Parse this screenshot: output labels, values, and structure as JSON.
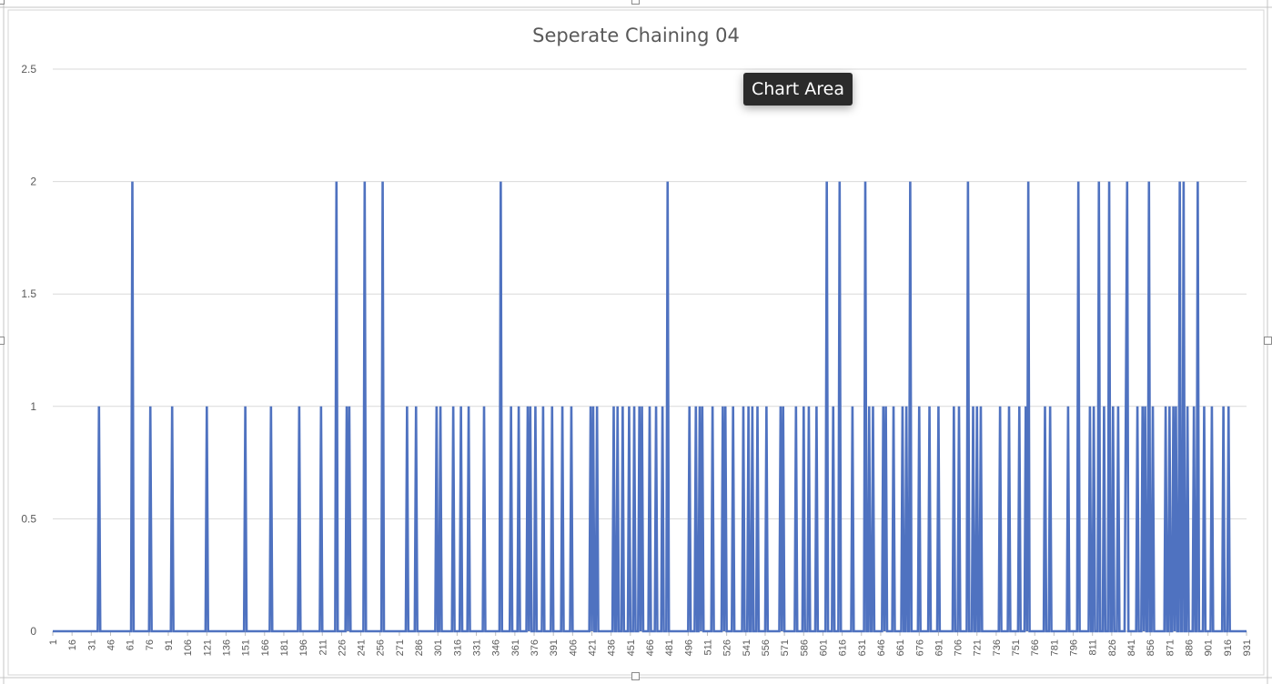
{
  "tooltip": {
    "text": "Chart Area"
  },
  "chart_data": {
    "type": "line",
    "title": "Seperate Chaining 04",
    "xlabel": "",
    "ylabel": "",
    "ylim": [
      0,
      2.5
    ],
    "y_ticks": [
      "0",
      "0.5",
      "1",
      "1.5",
      "2",
      "2.5"
    ],
    "x_ticks": [
      "1",
      "16",
      "31",
      "46",
      "61",
      "76",
      "91",
      "106",
      "121",
      "136",
      "151",
      "166",
      "181",
      "196",
      "211",
      "226",
      "241",
      "256",
      "271",
      "286",
      "301",
      "316",
      "331",
      "346",
      "361",
      "376",
      "391",
      "406",
      "421",
      "436",
      "451",
      "466",
      "481",
      "496",
      "511",
      "526",
      "541",
      "556",
      "571",
      "586",
      "601",
      "616",
      "631",
      "646",
      "661",
      "676",
      "691",
      "706",
      "721",
      "736",
      "751",
      "766",
      "781",
      "796",
      "811",
      "826",
      "841",
      "856",
      "871",
      "886",
      "901",
      "916",
      "931"
    ],
    "x_range": [
      1,
      931
    ],
    "grid": "horizontal",
    "legend": "none",
    "series_color": "#4f72c0",
    "point_count": 931,
    "peaks": [
      {
        "x": 37,
        "y": 1
      },
      {
        "x": 63,
        "y": 2
      },
      {
        "x": 77,
        "y": 1
      },
      {
        "x": 94,
        "y": 1
      },
      {
        "x": 121,
        "y": 1
      },
      {
        "x": 151,
        "y": 1
      },
      {
        "x": 171,
        "y": 1
      },
      {
        "x": 193,
        "y": 1
      },
      {
        "x": 210,
        "y": 1
      },
      {
        "x": 222,
        "y": 2
      },
      {
        "x": 230,
        "y": 1
      },
      {
        "x": 232,
        "y": 1
      },
      {
        "x": 244,
        "y": 2
      },
      {
        "x": 258,
        "y": 2
      },
      {
        "x": 277,
        "y": 1
      },
      {
        "x": 284,
        "y": 1
      },
      {
        "x": 300,
        "y": 1
      },
      {
        "x": 303,
        "y": 1
      },
      {
        "x": 313,
        "y": 1
      },
      {
        "x": 319,
        "y": 1
      },
      {
        "x": 325,
        "y": 1
      },
      {
        "x": 337,
        "y": 1
      },
      {
        "x": 350,
        "y": 2
      },
      {
        "x": 358,
        "y": 1
      },
      {
        "x": 364,
        "y": 1
      },
      {
        "x": 371,
        "y": 1
      },
      {
        "x": 373,
        "y": 1
      },
      {
        "x": 377,
        "y": 1
      },
      {
        "x": 383,
        "y": 1
      },
      {
        "x": 390,
        "y": 1
      },
      {
        "x": 398,
        "y": 1
      },
      {
        "x": 405,
        "y": 1
      },
      {
        "x": 420,
        "y": 1
      },
      {
        "x": 422,
        "y": 1
      },
      {
        "x": 425,
        "y": 1
      },
      {
        "x": 438,
        "y": 1
      },
      {
        "x": 441,
        "y": 1
      },
      {
        "x": 445,
        "y": 1
      },
      {
        "x": 450,
        "y": 1
      },
      {
        "x": 454,
        "y": 1
      },
      {
        "x": 458,
        "y": 1
      },
      {
        "x": 460,
        "y": 1
      },
      {
        "x": 466,
        "y": 1
      },
      {
        "x": 471,
        "y": 1
      },
      {
        "x": 476,
        "y": 1
      },
      {
        "x": 480,
        "y": 2
      },
      {
        "x": 497,
        "y": 1
      },
      {
        "x": 502,
        "y": 1
      },
      {
        "x": 505,
        "y": 1
      },
      {
        "x": 507,
        "y": 1
      },
      {
        "x": 515,
        "y": 1
      },
      {
        "x": 523,
        "y": 1
      },
      {
        "x": 525,
        "y": 1
      },
      {
        "x": 531,
        "y": 1
      },
      {
        "x": 539,
        "y": 1
      },
      {
        "x": 543,
        "y": 1
      },
      {
        "x": 546,
        "y": 1
      },
      {
        "x": 550,
        "y": 1
      },
      {
        "x": 557,
        "y": 1
      },
      {
        "x": 568,
        "y": 1
      },
      {
        "x": 570,
        "y": 1
      },
      {
        "x": 580,
        "y": 1
      },
      {
        "x": 586,
        "y": 1
      },
      {
        "x": 590,
        "y": 1
      },
      {
        "x": 596,
        "y": 1
      },
      {
        "x": 604,
        "y": 2
      },
      {
        "x": 609,
        "y": 1
      },
      {
        "x": 614,
        "y": 2
      },
      {
        "x": 624,
        "y": 1
      },
      {
        "x": 634,
        "y": 2
      },
      {
        "x": 637,
        "y": 1
      },
      {
        "x": 640,
        "y": 1
      },
      {
        "x": 648,
        "y": 1
      },
      {
        "x": 650,
        "y": 1
      },
      {
        "x": 656,
        "y": 1
      },
      {
        "x": 663,
        "y": 1
      },
      {
        "x": 666,
        "y": 1
      },
      {
        "x": 669,
        "y": 2
      },
      {
        "x": 676,
        "y": 1
      },
      {
        "x": 684,
        "y": 1
      },
      {
        "x": 691,
        "y": 1
      },
      {
        "x": 703,
        "y": 1
      },
      {
        "x": 707,
        "y": 1
      },
      {
        "x": 714,
        "y": 2
      },
      {
        "x": 718,
        "y": 1
      },
      {
        "x": 721,
        "y": 1
      },
      {
        "x": 724,
        "y": 1
      },
      {
        "x": 739,
        "y": 1
      },
      {
        "x": 746,
        "y": 1
      },
      {
        "x": 754,
        "y": 1
      },
      {
        "x": 759,
        "y": 1
      },
      {
        "x": 761,
        "y": 2
      },
      {
        "x": 774,
        "y": 1
      },
      {
        "x": 778,
        "y": 1
      },
      {
        "x": 792,
        "y": 1
      },
      {
        "x": 800,
        "y": 2
      },
      {
        "x": 809,
        "y": 1
      },
      {
        "x": 812,
        "y": 1
      },
      {
        "x": 816,
        "y": 2
      },
      {
        "x": 820,
        "y": 1
      },
      {
        "x": 824,
        "y": 2
      },
      {
        "x": 827,
        "y": 1
      },
      {
        "x": 831,
        "y": 1
      },
      {
        "x": 837,
        "y": 1
      },
      {
        "x": 838,
        "y": 2
      },
      {
        "x": 846,
        "y": 1
      },
      {
        "x": 850,
        "y": 1
      },
      {
        "x": 852,
        "y": 1
      },
      {
        "x": 855,
        "y": 2
      },
      {
        "x": 858,
        "y": 1
      },
      {
        "x": 868,
        "y": 1
      },
      {
        "x": 871,
        "y": 1
      },
      {
        "x": 874,
        "y": 1
      },
      {
        "x": 876,
        "y": 1
      },
      {
        "x": 879,
        "y": 2
      },
      {
        "x": 882,
        "y": 2
      },
      {
        "x": 885,
        "y": 1
      },
      {
        "x": 890,
        "y": 1
      },
      {
        "x": 893,
        "y": 2
      },
      {
        "x": 898,
        "y": 1
      },
      {
        "x": 904,
        "y": 1
      },
      {
        "x": 913,
        "y": 1
      },
      {
        "x": 917,
        "y": 1
      }
    ]
  }
}
